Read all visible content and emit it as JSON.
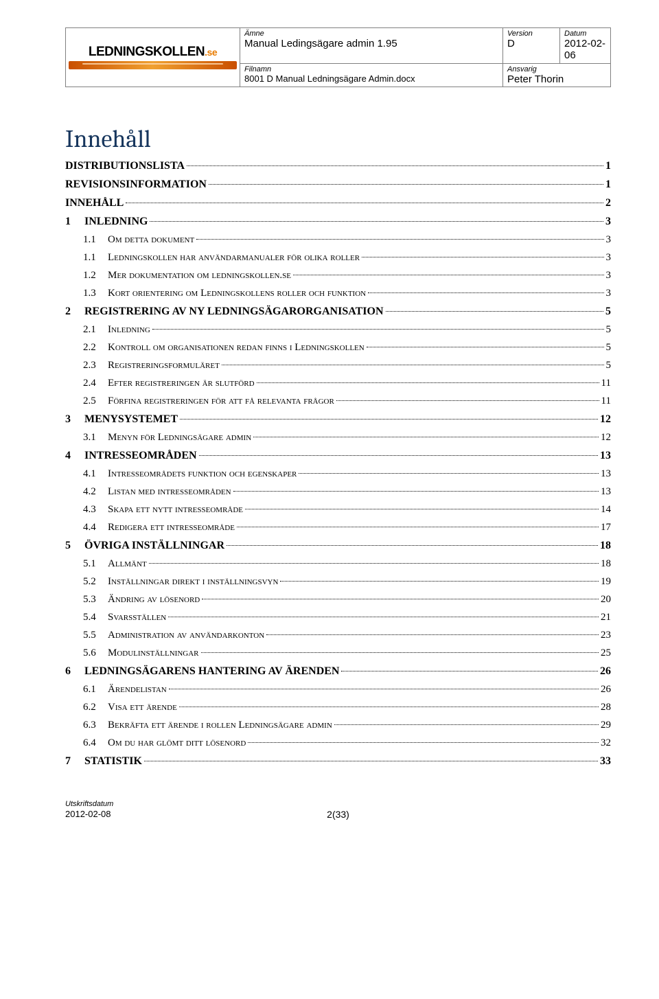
{
  "header": {
    "labels": {
      "amne": "Ämne",
      "version": "Version",
      "datum": "Datum",
      "filnamn": "Filnamn",
      "ansvarig": "Ansvarig"
    },
    "amne": "Manual Ledingsägare admin 1.95",
    "version": "D",
    "datum": "2012-02-06",
    "filnamn": "8001 D Manual Ledningsägare Admin.docx",
    "ansvarig": "Peter Thorin",
    "logo_main": "LEDNINGSKOLLEN",
    "logo_suffix": ".se"
  },
  "title": "Innehåll",
  "toc": [
    {
      "level": 0,
      "num": "",
      "text": "DISTRIBUTIONSLISTA",
      "page": "1"
    },
    {
      "level": 0,
      "num": "",
      "text": "REVISIONSINFORMATION",
      "page": "1"
    },
    {
      "level": 0,
      "num": "",
      "text": "INNEHÅLL",
      "page": "2"
    },
    {
      "level": 1,
      "num": "1",
      "text": "INLEDNING",
      "page": "3"
    },
    {
      "level": 2,
      "num": "1.1",
      "text": "Om detta dokument",
      "page": "3"
    },
    {
      "level": 2,
      "num": "1.1",
      "text": "Ledningskollen har användarmanualer för olika roller",
      "page": "3"
    },
    {
      "level": 2,
      "num": "1.2",
      "text": "Mer dokumentation om ledningskollen.se",
      "page": "3"
    },
    {
      "level": 2,
      "num": "1.3",
      "text": "Kort orientering om Ledningskollens roller och funktion",
      "page": "3"
    },
    {
      "level": 1,
      "num": "2",
      "text": "REGISTRERING AV NY LEDNINGSÄGARORGANISATION",
      "page": "5"
    },
    {
      "level": 2,
      "num": "2.1",
      "text": "Inledning",
      "page": "5"
    },
    {
      "level": 2,
      "num": "2.2",
      "text": "Kontroll om organisationen redan finns i Ledningskollen",
      "page": "5"
    },
    {
      "level": 2,
      "num": "2.3",
      "text": "Registreringsformuläret",
      "page": "5"
    },
    {
      "level": 2,
      "num": "2.4",
      "text": "Efter registreringen är slutförd",
      "page": "11"
    },
    {
      "level": 2,
      "num": "2.5",
      "text": "Förfina registreringen för att få relevanta frågor",
      "page": "11"
    },
    {
      "level": 1,
      "num": "3",
      "text": "MENYSYSTEMET",
      "page": "12"
    },
    {
      "level": 2,
      "num": "3.1",
      "text": "Menyn för Ledningsägare admin",
      "page": "12"
    },
    {
      "level": 1,
      "num": "4",
      "text": "INTRESSEOMRÅDEN",
      "page": "13"
    },
    {
      "level": 2,
      "num": "4.1",
      "text": "Intresseområdets funktion och egenskaper",
      "page": "13"
    },
    {
      "level": 2,
      "num": "4.2",
      "text": "Listan med intresseområden",
      "page": "13"
    },
    {
      "level": 2,
      "num": "4.3",
      "text": "Skapa ett nytt intresseområde",
      "page": "14"
    },
    {
      "level": 2,
      "num": "4.4",
      "text": "Redigera ett intresseområde",
      "page": "17"
    },
    {
      "level": 1,
      "num": "5",
      "text": "ÖVRIGA INSTÄLLNINGAR",
      "page": "18"
    },
    {
      "level": 2,
      "num": "5.1",
      "text": "Allmänt",
      "page": "18"
    },
    {
      "level": 2,
      "num": "5.2",
      "text": "Inställningar direkt i inställningsvyn",
      "page": "19"
    },
    {
      "level": 2,
      "num": "5.3",
      "text": "Ändring av lösenord",
      "page": "20"
    },
    {
      "level": 2,
      "num": "5.4",
      "text": "Svarsställen",
      "page": "21"
    },
    {
      "level": 2,
      "num": "5.5",
      "text": "Administration av användarkonton",
      "page": "23"
    },
    {
      "level": 2,
      "num": "5.6",
      "text": "Modulinställningar",
      "page": "25"
    },
    {
      "level": 1,
      "num": "6",
      "text": "LEDNINGSÄGARENS HANTERING AV ÄRENDEN",
      "page": "26"
    },
    {
      "level": 2,
      "num": "6.1",
      "text": "Ärendelistan",
      "page": "26"
    },
    {
      "level": 2,
      "num": "6.2",
      "text": "Visa ett ärende",
      "page": "28"
    },
    {
      "level": 2,
      "num": "6.3",
      "text": "Bekräfta ett ärende i rollen Ledningsägare admin",
      "page": "29"
    },
    {
      "level": 2,
      "num": "6.4",
      "text": "Om du har glömt ditt lösenord",
      "page": "32"
    },
    {
      "level": 1,
      "num": "7",
      "text": "STATISTIK",
      "page": "33"
    }
  ],
  "footer": {
    "label": "Utskriftsdatum",
    "date": "2012-02-08",
    "page": "2(33)"
  },
  "colors": {
    "title_color": "#17365d",
    "border_color": "#808080",
    "logo_accent": "#e87b00",
    "text_color": "#000000",
    "background": "#ffffff"
  }
}
